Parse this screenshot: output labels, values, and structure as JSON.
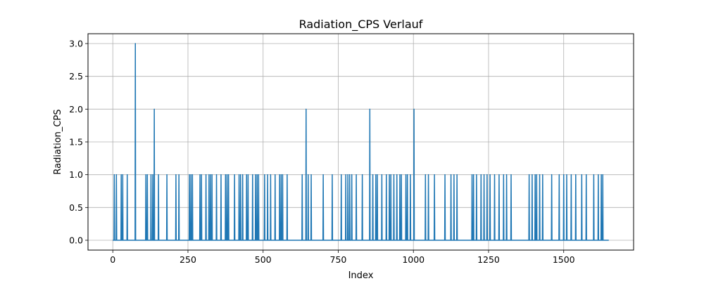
{
  "chart_data": {
    "type": "line",
    "title": "Radiation_CPS Verlauf",
    "xlabel": "Index",
    "ylabel": "Radiation_CPS",
    "xlim": [
      -82.5,
      1732.5
    ],
    "ylim": [
      -0.15,
      3.15
    ],
    "x_ticks": [
      0,
      250,
      500,
      750,
      1000,
      1250,
      1500
    ],
    "y_ticks": [
      0.0,
      0.5,
      1.0,
      1.5,
      2.0,
      2.5,
      3.0
    ],
    "x_tick_labels": [
      "0",
      "250",
      "500",
      "750",
      "1000",
      "1250",
      "1500"
    ],
    "y_tick_labels": [
      "0.0",
      "0.5",
      "1.0",
      "1.5",
      "2.0",
      "2.5",
      "3.0"
    ],
    "grid": true,
    "line_color": "#1f77b4",
    "series": [
      {
        "x_range": [
          0,
          1650
        ],
        "baseline": 0,
        "spikes": [
          {
            "x": 5,
            "y": 1
          },
          {
            "x": 12,
            "y": 1
          },
          {
            "x": 28,
            "y": 1
          },
          {
            "x": 33,
            "y": 1
          },
          {
            "x": 48,
            "y": 1
          },
          {
            "x": 75,
            "y": 3
          },
          {
            "x": 110,
            "y": 1
          },
          {
            "x": 115,
            "y": 1
          },
          {
            "x": 127,
            "y": 1
          },
          {
            "x": 133,
            "y": 1
          },
          {
            "x": 138,
            "y": 2
          },
          {
            "x": 152,
            "y": 1
          },
          {
            "x": 180,
            "y": 1
          },
          {
            "x": 210,
            "y": 1
          },
          {
            "x": 220,
            "y": 1
          },
          {
            "x": 255,
            "y": 1
          },
          {
            "x": 260,
            "y": 1
          },
          {
            "x": 265,
            "y": 1
          },
          {
            "x": 290,
            "y": 1
          },
          {
            "x": 295,
            "y": 1
          },
          {
            "x": 310,
            "y": 1
          },
          {
            "x": 320,
            "y": 1
          },
          {
            "x": 325,
            "y": 1
          },
          {
            "x": 330,
            "y": 1
          },
          {
            "x": 345,
            "y": 1
          },
          {
            "x": 360,
            "y": 1
          },
          {
            "x": 375,
            "y": 1
          },
          {
            "x": 380,
            "y": 1
          },
          {
            "x": 385,
            "y": 1
          },
          {
            "x": 405,
            "y": 1
          },
          {
            "x": 420,
            "y": 1
          },
          {
            "x": 425,
            "y": 1
          },
          {
            "x": 432,
            "y": 1
          },
          {
            "x": 445,
            "y": 1
          },
          {
            "x": 450,
            "y": 1
          },
          {
            "x": 465,
            "y": 1
          },
          {
            "x": 475,
            "y": 1
          },
          {
            "x": 480,
            "y": 1
          },
          {
            "x": 485,
            "y": 1
          },
          {
            "x": 505,
            "y": 1
          },
          {
            "x": 515,
            "y": 1
          },
          {
            "x": 525,
            "y": 1
          },
          {
            "x": 540,
            "y": 1
          },
          {
            "x": 555,
            "y": 1
          },
          {
            "x": 560,
            "y": 1
          },
          {
            "x": 565,
            "y": 1
          },
          {
            "x": 580,
            "y": 1
          },
          {
            "x": 630,
            "y": 1
          },
          {
            "x": 643,
            "y": 2
          },
          {
            "x": 650,
            "y": 1
          },
          {
            "x": 660,
            "y": 1
          },
          {
            "x": 700,
            "y": 1
          },
          {
            "x": 730,
            "y": 1
          },
          {
            "x": 760,
            "y": 1
          },
          {
            "x": 775,
            "y": 1
          },
          {
            "x": 782,
            "y": 1
          },
          {
            "x": 788,
            "y": 1
          },
          {
            "x": 795,
            "y": 1
          },
          {
            "x": 810,
            "y": 1
          },
          {
            "x": 830,
            "y": 1
          },
          {
            "x": 855,
            "y": 2
          },
          {
            "x": 865,
            "y": 1
          },
          {
            "x": 875,
            "y": 1
          },
          {
            "x": 880,
            "y": 1
          },
          {
            "x": 895,
            "y": 1
          },
          {
            "x": 910,
            "y": 1
          },
          {
            "x": 920,
            "y": 1
          },
          {
            "x": 925,
            "y": 1
          },
          {
            "x": 935,
            "y": 1
          },
          {
            "x": 945,
            "y": 1
          },
          {
            "x": 955,
            "y": 1
          },
          {
            "x": 960,
            "y": 1
          },
          {
            "x": 975,
            "y": 1
          },
          {
            "x": 980,
            "y": 1
          },
          {
            "x": 990,
            "y": 1
          },
          {
            "x": 1002,
            "y": 2
          },
          {
            "x": 1040,
            "y": 1
          },
          {
            "x": 1050,
            "y": 1
          },
          {
            "x": 1070,
            "y": 1
          },
          {
            "x": 1105,
            "y": 1
          },
          {
            "x": 1125,
            "y": 1
          },
          {
            "x": 1135,
            "y": 1
          },
          {
            "x": 1145,
            "y": 1
          },
          {
            "x": 1195,
            "y": 1
          },
          {
            "x": 1200,
            "y": 1
          },
          {
            "x": 1210,
            "y": 1
          },
          {
            "x": 1225,
            "y": 1
          },
          {
            "x": 1235,
            "y": 1
          },
          {
            "x": 1245,
            "y": 1
          },
          {
            "x": 1255,
            "y": 1
          },
          {
            "x": 1270,
            "y": 1
          },
          {
            "x": 1285,
            "y": 1
          },
          {
            "x": 1300,
            "y": 1
          },
          {
            "x": 1310,
            "y": 1
          },
          {
            "x": 1325,
            "y": 1
          },
          {
            "x": 1385,
            "y": 1
          },
          {
            "x": 1395,
            "y": 1
          },
          {
            "x": 1405,
            "y": 1
          },
          {
            "x": 1410,
            "y": 1
          },
          {
            "x": 1420,
            "y": 1
          },
          {
            "x": 1430,
            "y": 1
          },
          {
            "x": 1460,
            "y": 1
          },
          {
            "x": 1485,
            "y": 1
          },
          {
            "x": 1500,
            "y": 1
          },
          {
            "x": 1510,
            "y": 1
          },
          {
            "x": 1525,
            "y": 1
          },
          {
            "x": 1540,
            "y": 1
          },
          {
            "x": 1560,
            "y": 1
          },
          {
            "x": 1575,
            "y": 1
          },
          {
            "x": 1600,
            "y": 1
          },
          {
            "x": 1615,
            "y": 1
          },
          {
            "x": 1625,
            "y": 1
          },
          {
            "x": 1630,
            "y": 1
          }
        ]
      }
    ]
  }
}
